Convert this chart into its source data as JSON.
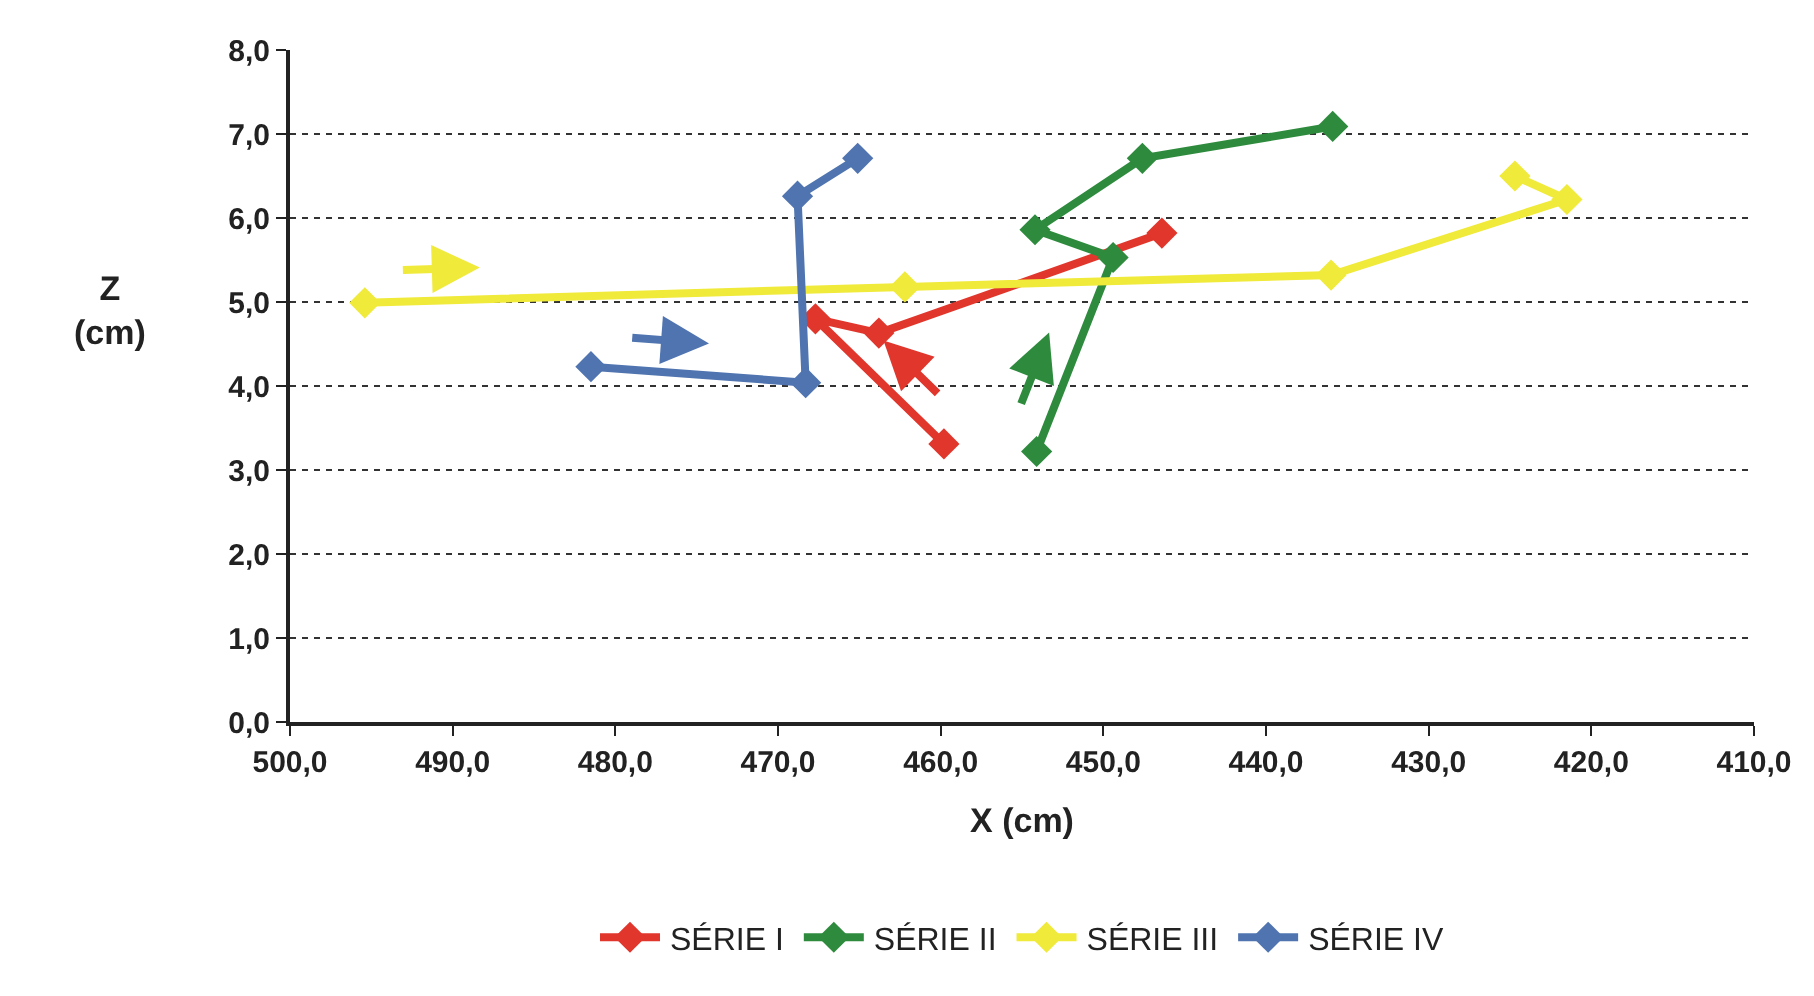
{
  "chart_data": {
    "type": "line",
    "xlabel": "X (cm)",
    "ylabel": "Z\n(cm)",
    "xlim": [
      500,
      410
    ],
    "xticks": [
      {
        "value": 500,
        "label": "500,0"
      },
      {
        "value": 490,
        "label": "490,0"
      },
      {
        "value": 480,
        "label": "480,0"
      },
      {
        "value": 470,
        "label": "470,0"
      },
      {
        "value": 460,
        "label": "460,0"
      },
      {
        "value": 450,
        "label": "450,0"
      },
      {
        "value": 440,
        "label": "440,0"
      },
      {
        "value": 430,
        "label": "430,0"
      },
      {
        "value": 420,
        "label": "420,0"
      },
      {
        "value": 410,
        "label": "410,0"
      }
    ],
    "ylim": [
      0,
      8
    ],
    "yticks": [
      {
        "value": 0,
        "label": "0,0"
      },
      {
        "value": 1,
        "label": "1,0"
      },
      {
        "value": 2,
        "label": "2,0"
      },
      {
        "value": 3,
        "label": "3,0"
      },
      {
        "value": 4,
        "label": "4,0"
      },
      {
        "value": 5,
        "label": "5,0"
      },
      {
        "value": 6,
        "label": "6,0"
      },
      {
        "value": 7,
        "label": "7,0"
      },
      {
        "value": 8,
        "label": "8,0"
      }
    ],
    "grid": "y",
    "legend": "bottom",
    "marker": "diamond",
    "line_style": "solid",
    "series": [
      {
        "name": "SÉRIE I",
        "color": "#e0362c",
        "x": [
          459.8,
          467.7,
          463.8,
          446.4
        ],
        "values": [
          3.31,
          4.8,
          4.63,
          5.82
        ]
      },
      {
        "name": "SÉRIE II",
        "color": "#2e8b3e",
        "x": [
          454.1,
          449.4,
          454.2,
          447.6,
          435.9
        ],
        "values": [
          3.22,
          5.53,
          5.86,
          6.71,
          7.09
        ]
      },
      {
        "name": "SÉRIE III",
        "color": "#f0ea3a",
        "x": [
          495.4,
          462.2,
          436.0,
          421.5,
          424.7
        ],
        "values": [
          4.99,
          5.18,
          5.32,
          6.22,
          6.5
        ]
      },
      {
        "name": "SÉRIE IV",
        "color": "#4f74b0",
        "x": [
          481.5,
          468.3,
          468.8,
          465.1
        ],
        "values": [
          4.23,
          4.04,
          6.26,
          6.71
        ]
      }
    ]
  }
}
